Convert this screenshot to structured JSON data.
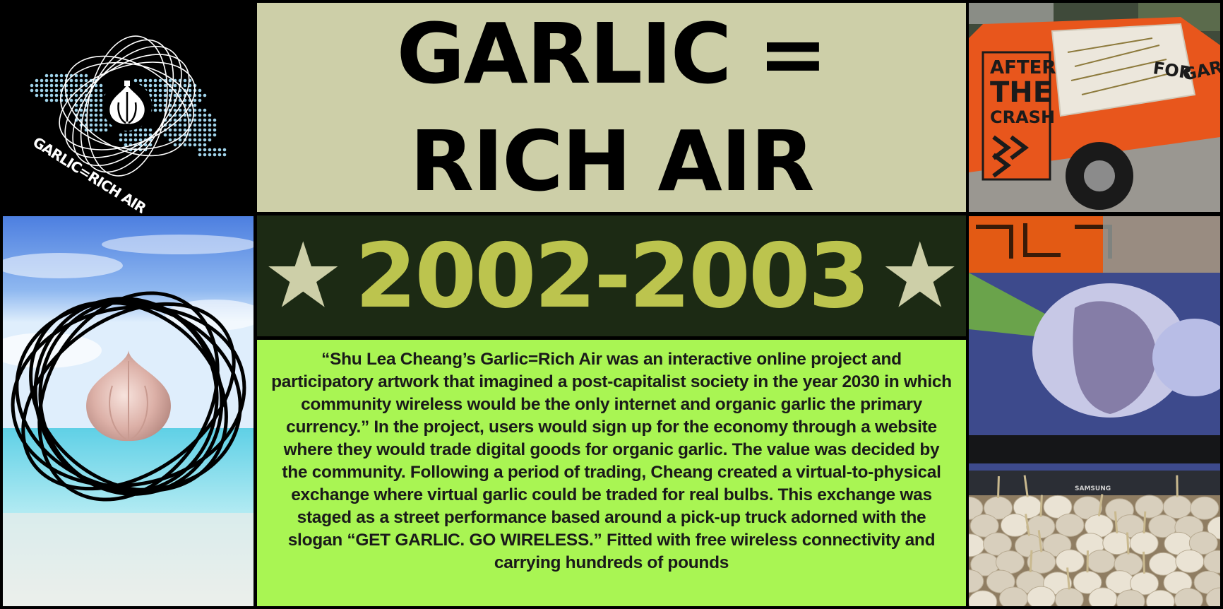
{
  "logo": {
    "text": "GARLIC=RICH AIR"
  },
  "title": {
    "line1": "GARLIC =",
    "line2": "RICH AIR"
  },
  "years": {
    "text": "2002-2003",
    "star_left": "★",
    "star_right": "★"
  },
  "description": "“Shu Lea Cheang’s Garlic=Rich Air was an interactive online project and participatory artwork that imagined a post-capitalist society in the year 2030 in which community wireless would be the only internet and organic garlic the primary currency.” In the project, users would sign up for the economy through a website where they would trade digital goods for organic garlic. The value was decided by the community. Following a period of trading, Cheang created a virtual-to-physical exchange where virtual garlic could be traded for real bulbs. This exchange was staged as a street performance based around a pick-up truck adorned with the slogan “GET GARLIC. GO WIRELESS.” Fitted with free wireless connectivity and carrying hundreds of pounds",
  "truck": {
    "sign_line1": "AFTER",
    "sign_line2": "THE",
    "sign_line3": "CRASH",
    "side_text": "GARLIC",
    "door_text": "FOR"
  },
  "screen_brand": "SAMSUNG",
  "colors": {
    "title_bg": "#cdcfa8",
    "years_bg": "#1c2a14",
    "years_text": "#bcc44e",
    "desc_bg": "#a9f553",
    "truck_orange": "#e8561c"
  }
}
